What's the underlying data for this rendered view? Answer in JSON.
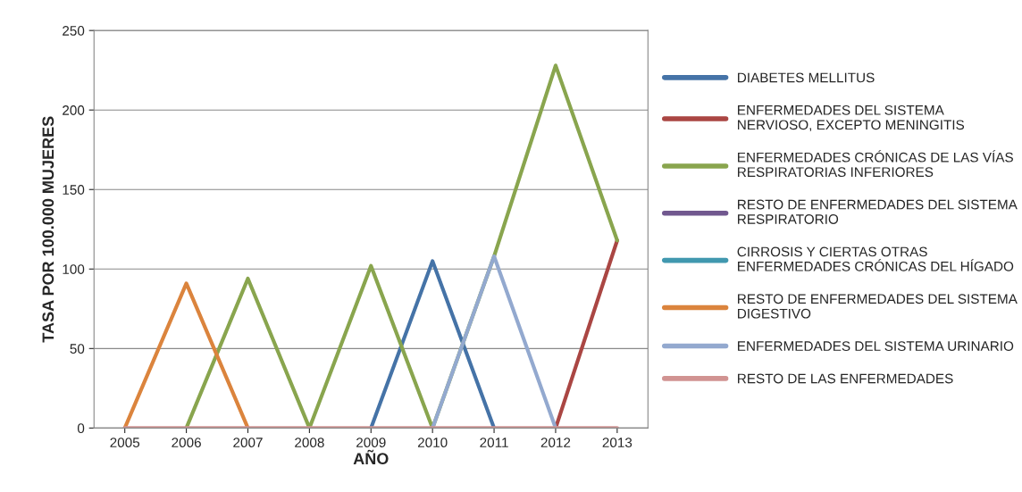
{
  "chart_data": {
    "type": "line",
    "xlabel": "AÑO",
    "ylabel": "TASA POR 100.000 MUJERES",
    "categories": [
      "2005",
      "2006",
      "2007",
      "2008",
      "2009",
      "2010",
      "2011",
      "2012",
      "2013"
    ],
    "ylim": [
      0,
      250
    ],
    "yticks": [
      0,
      50,
      100,
      150,
      200,
      250
    ],
    "grid": "y",
    "legend": "right",
    "marker": "none",
    "line_style": "solid",
    "series": [
      {
        "name": "DIABETES MELLITUS",
        "color": "#4573a7",
        "values": [
          null,
          null,
          null,
          null,
          0,
          105,
          0,
          null,
          null
        ]
      },
      {
        "name": "ENFERMEDADES DEL SISTEMA\nNERVIOSO, EXCEPTO MENINGITIS",
        "color": "#aa4643",
        "values": [
          null,
          null,
          null,
          null,
          null,
          null,
          null,
          0,
          118
        ]
      },
      {
        "name": "ENFERMEDADES CRÓNICAS DE LAS VÍAS\nRESPIRATORIAS INFERIORES",
        "color": "#89a54e",
        "values": [
          null,
          0,
          94,
          0,
          102,
          0,
          108,
          228,
          118
        ]
      },
      {
        "name": "RESTO DE ENFERMEDADES DEL SISTEMA\nRESPIRATORIO",
        "color": "#71588f",
        "values": [
          null,
          null,
          null,
          null,
          null,
          null,
          null,
          null,
          null
        ]
      },
      {
        "name": "CIRROSIS Y CIERTAS OTRAS\nENFERMEDADES CRÓNICAS DEL HÍGADO",
        "color": "#4198af",
        "values": [
          null,
          null,
          null,
          null,
          null,
          null,
          null,
          null,
          null
        ]
      },
      {
        "name": "RESTO DE ENFERMEDADES DEL SISTEMA\nDIGESTIVO",
        "color": "#db843d",
        "values": [
          0,
          91,
          0,
          null,
          null,
          null,
          null,
          null,
          null
        ]
      },
      {
        "name": "ENFERMEDADES DEL SISTEMA URINARIO",
        "color": "#93a9cf",
        "values": [
          null,
          null,
          null,
          null,
          null,
          0,
          108,
          0,
          null
        ]
      },
      {
        "name": "RESTO DE LAS ENFERMEDADES",
        "color": "#d19392",
        "values": [
          0,
          0,
          0,
          0,
          0,
          0,
          0,
          0,
          0
        ]
      }
    ]
  }
}
